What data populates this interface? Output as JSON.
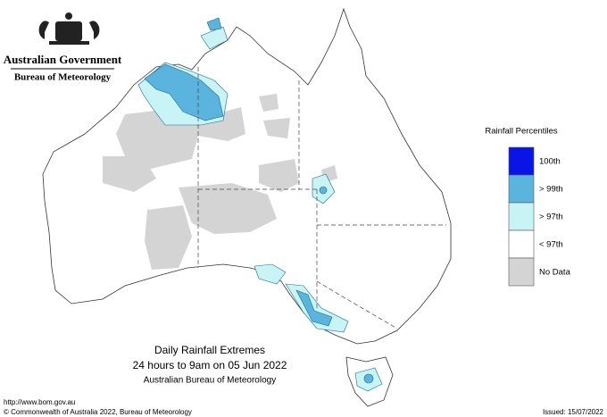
{
  "header": {
    "agency": "Australian Government",
    "bureau": "Bureau of Meteorology"
  },
  "legend": {
    "title": "Rainfall Percentiles",
    "items": [
      {
        "label": "100th",
        "color": "#0a14e6"
      },
      {
        "label": "> 99th",
        "color": "#5bb4de"
      },
      {
        "label": "> 97th",
        "color": "#c8f4f6"
      },
      {
        "label": "< 97th",
        "color": "#ffffff"
      },
      {
        "label": "No Data",
        "color": "#d4d4d4"
      }
    ]
  },
  "caption": {
    "title": "Daily Rainfall Extremes",
    "period": "24 hours to 9am on 05 Jun 2022",
    "source": "Australian Bureau of Meteorology"
  },
  "footer": {
    "url": "http://www.bom.gov.au",
    "copyright": "© Commonwealth of Australia 2022, Bureau of Meteorology",
    "issued": "Issued: 15/07/2022"
  }
}
